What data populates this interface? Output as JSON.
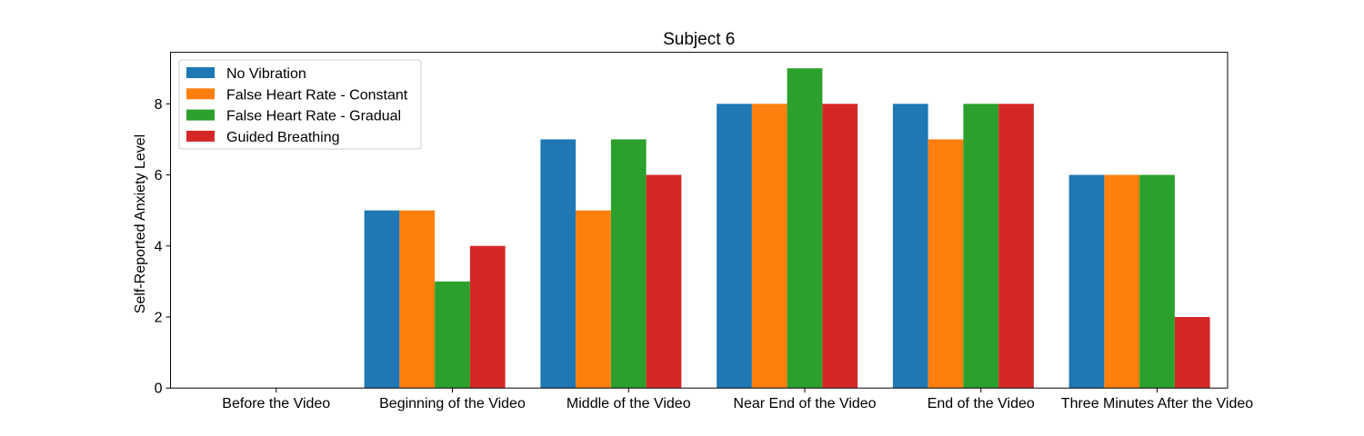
{
  "chart_data": {
    "type": "bar",
    "title": "Subject 6",
    "xlabel": "",
    "ylabel": "Self-Reported Anxiety Level",
    "ylim": [
      0,
      9.45
    ],
    "yticks": [
      0,
      2,
      4,
      6,
      8
    ],
    "grid": false,
    "legend_position": "top-left",
    "categories": [
      "Before the Video",
      "Beginning of the Video",
      "Middle of the Video",
      "Near End of the Video",
      "End of the Video",
      "Three Minutes After the Video"
    ],
    "series": [
      {
        "name": "No Vibration",
        "color": "#1f77b4",
        "values": [
          0,
          5,
          7,
          8,
          8,
          6
        ]
      },
      {
        "name": "False Heart Rate - Constant",
        "color": "#ff7f0e",
        "values": [
          0,
          5,
          5,
          8,
          7,
          6
        ]
      },
      {
        "name": "False Heart Rate - Gradual",
        "color": "#2ca02c",
        "values": [
          0,
          3,
          7,
          9,
          8,
          6
        ]
      },
      {
        "name": "Guided Breathing",
        "color": "#d62728",
        "values": [
          0,
          4,
          6,
          8,
          8,
          2
        ]
      }
    ]
  }
}
